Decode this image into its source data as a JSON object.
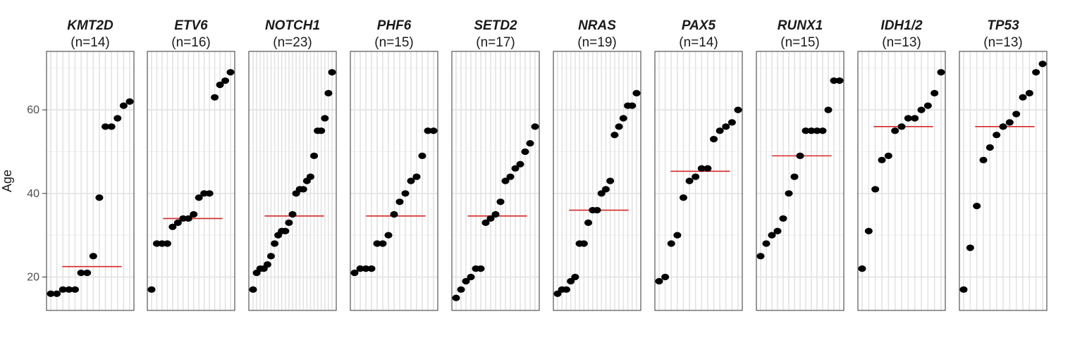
{
  "chart_data": {
    "type": "scatter",
    "ylabel": "Age",
    "ylim": [
      12,
      74
    ],
    "yticks": [
      20,
      40,
      60
    ],
    "grid": true,
    "colors": {
      "point": "#000000",
      "median": "#d62728",
      "grid_major": "#e3e3e3",
      "grid_minor": "#efefef",
      "panel_border": "#333333"
    },
    "panels": [
      {
        "gene": "KMT2D",
        "n_label": "(n=14)",
        "median": 22.5,
        "ages": [
          16,
          16,
          17,
          17,
          17,
          21,
          21,
          25,
          39,
          56,
          56,
          58,
          61,
          62
        ]
      },
      {
        "gene": "ETV6",
        "n_label": "(n=16)",
        "median": 34,
        "ages": [
          17,
          28,
          28,
          28,
          32,
          33,
          34,
          34,
          35,
          39,
          40,
          40,
          63,
          66,
          67,
          69
        ]
      },
      {
        "gene": "NOTCH1",
        "n_label": "(n=23)",
        "median": 34.6,
        "ages": [
          17,
          21,
          22,
          22,
          23,
          25,
          28,
          30,
          31,
          31,
          33,
          35,
          40,
          41,
          41,
          43,
          44,
          49,
          55,
          55,
          58,
          64,
          69
        ]
      },
      {
        "gene": "PHF6",
        "n_label": "(n=15)",
        "median": 34.6,
        "ages": [
          21,
          22,
          22,
          22,
          28,
          28,
          30,
          35,
          38,
          40,
          43,
          44,
          49,
          55,
          55
        ]
      },
      {
        "gene": "SETD2",
        "n_label": "(n=17)",
        "median": 34.6,
        "ages": [
          15,
          17,
          19,
          20,
          22,
          22,
          33,
          34,
          35,
          38,
          43,
          44,
          46,
          47,
          50,
          52,
          56
        ]
      },
      {
        "gene": "NRAS",
        "n_label": "(n=19)",
        "median": 36,
        "ages": [
          16,
          17,
          17,
          19,
          20,
          28,
          28,
          33,
          36,
          36,
          40,
          41,
          43,
          54,
          56,
          58,
          61,
          61,
          64
        ]
      },
      {
        "gene": "PAX5",
        "n_label": "(n=14)",
        "median": 45.3,
        "ages": [
          19,
          20,
          28,
          30,
          39,
          43,
          44,
          46,
          46,
          53,
          55,
          56,
          57,
          60
        ]
      },
      {
        "gene": "RUNX1",
        "n_label": "(n=15)",
        "median": 49,
        "ages": [
          25,
          28,
          30,
          31,
          34,
          40,
          44,
          49,
          55,
          55,
          55,
          55,
          60,
          67,
          67
        ]
      },
      {
        "gene": "IDH1/2",
        "n_label": "(n=13)",
        "median": 56,
        "ages": [
          22,
          31,
          41,
          48,
          49,
          55,
          56,
          58,
          58,
          60,
          61,
          64,
          69
        ]
      },
      {
        "gene": "TP53",
        "n_label": "(n=13)",
        "median": 56,
        "ages": [
          17,
          27,
          37,
          48,
          51,
          54,
          56,
          57,
          59,
          63,
          64,
          69,
          71
        ]
      }
    ]
  }
}
